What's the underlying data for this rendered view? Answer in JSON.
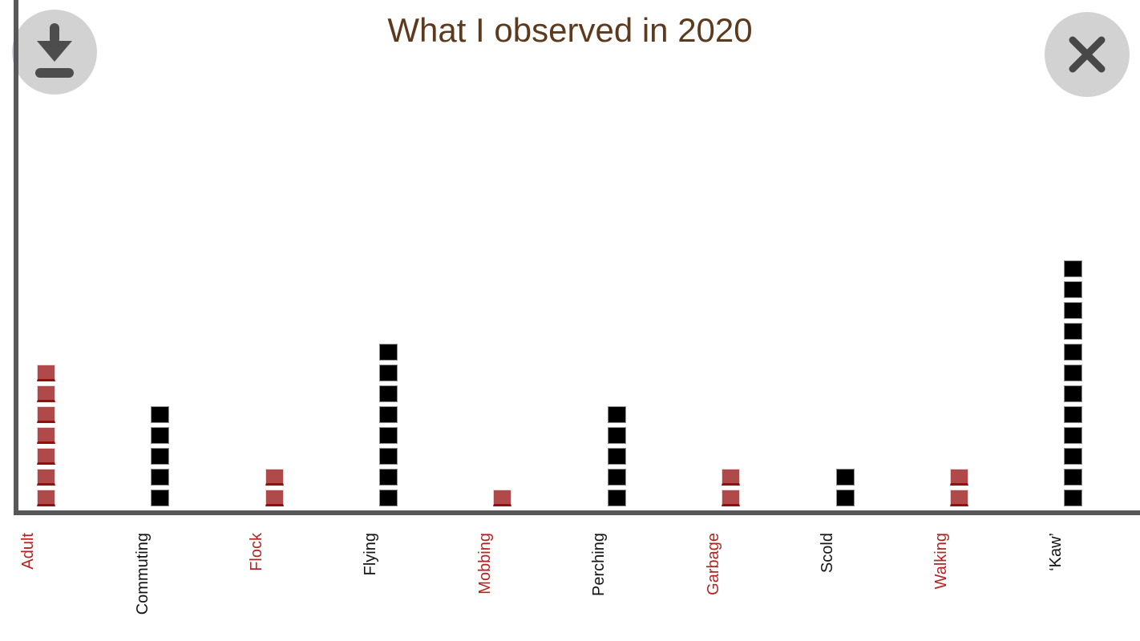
{
  "chart_data": {
    "type": "pictograph-bar",
    "title": "What I observed in 2020",
    "orientation": "vertical",
    "square_unit": 1,
    "y_axis_ticks": "none",
    "categories": [
      {
        "label": "Adult",
        "count": 7,
        "color": "red"
      },
      {
        "label": "Commuting",
        "count": 5,
        "color": "black"
      },
      {
        "label": "Flock",
        "count": 2,
        "color": "red"
      },
      {
        "label": "Flying",
        "count": 8,
        "color": "black"
      },
      {
        "label": "Mobbing",
        "count": 1,
        "color": "red"
      },
      {
        "label": "Perching",
        "count": 5,
        "color": "black"
      },
      {
        "label": "Garbage",
        "count": 2,
        "color": "red"
      },
      {
        "label": "Scold",
        "count": 2,
        "color": "black"
      },
      {
        "label": "Walking",
        "count": 2,
        "color": "red"
      },
      {
        "label": "‘Kaw’",
        "count": 12,
        "color": "black"
      }
    ],
    "palette": {
      "red_square": "#b04a4a",
      "black_square": "#000000",
      "red_label": "#b22421",
      "black_label": "#141414",
      "axis": "#58585a",
      "title": "#5d3a1e"
    }
  },
  "toolbar": {
    "download_icon": "download-icon",
    "close_icon": "close-icon"
  }
}
